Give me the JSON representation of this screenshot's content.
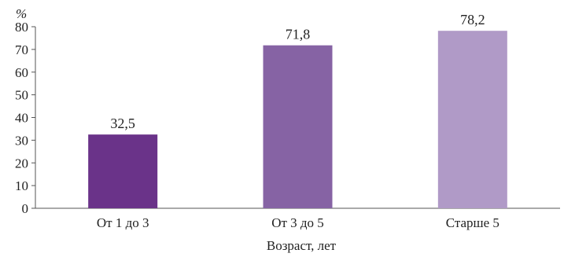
{
  "chart_data": {
    "type": "bar",
    "categories": [
      "От 1 до 3",
      "От 3 до 5",
      "Старше 5"
    ],
    "values": [
      32.5,
      71.8,
      78.2
    ],
    "value_labels": [
      "32,5",
      "71,8",
      "78,2"
    ],
    "colors": [
      "#6a3389",
      "#8663a4",
      "#b09ac7"
    ],
    "title": "",
    "xlabel": "Возраст, лет",
    "ylabel": "",
    "y_unit": "%",
    "ylim": [
      0,
      80
    ],
    "yticks": [
      "0",
      "10",
      "20",
      "30",
      "40",
      "50",
      "60",
      "70",
      "80"
    ],
    "grid": false,
    "legend": "none"
  }
}
